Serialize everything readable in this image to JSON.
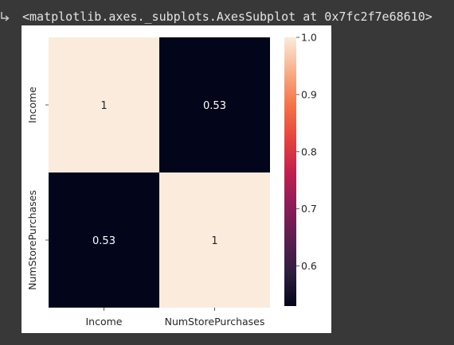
{
  "output": {
    "repr_text": "<matplotlib.axes._subplots.AxesSubplot at 0x7fc2f7e68610>",
    "arrow_icon": "output-arrow-icon"
  },
  "colors": {
    "page_bg": "#383838",
    "figure_bg": "#ffffff",
    "high": "#faebdd",
    "low": "#03051a"
  },
  "chart_data": {
    "type": "heatmap",
    "title": "",
    "xlabel": "",
    "ylabel": "",
    "x_categories": [
      "Income",
      "NumStorePurchases"
    ],
    "y_categories": [
      "Income",
      "NumStorePurchases"
    ],
    "values": [
      [
        1,
        0.53
      ],
      [
        0.53,
        1
      ]
    ],
    "annotations": [
      [
        "1",
        "0.53"
      ],
      [
        "0.53",
        "1"
      ]
    ],
    "colorbar": {
      "colormap": "rocket",
      "vmin": 0.53,
      "vmax": 1.0,
      "ticks": [
        1.0,
        0.9,
        0.8,
        0.7,
        0.6
      ],
      "tick_labels": [
        "1.0",
        "0.9",
        "0.8",
        "0.7",
        "0.6"
      ]
    }
  }
}
